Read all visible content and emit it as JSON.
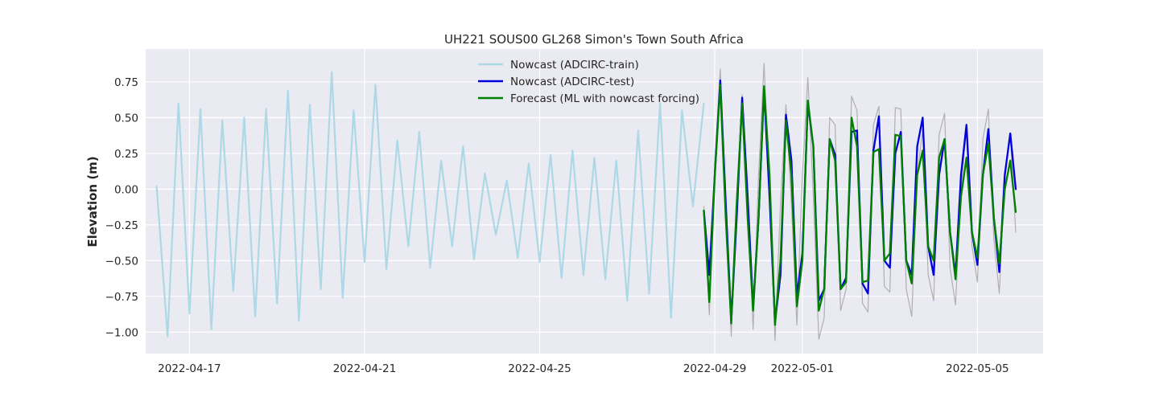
{
  "chart_data": {
    "type": "line",
    "title": "UH221 SOUS00 GL268 Simon's Town South Africa",
    "xlabel": "",
    "ylabel": "Elevation (m)",
    "xlim": [
      "2022-04-16 00:00",
      "2022-05-06 12:00"
    ],
    "ylim": [
      -1.15,
      0.98
    ],
    "grid": true,
    "legend_position": "top-center",
    "x_ticks": [
      "2022-04-17",
      "2022-04-21",
      "2022-04-25",
      "2022-04-29",
      "2022-05-01",
      "2022-05-05"
    ],
    "y_ticks": [
      -1.0,
      -0.75,
      -0.5,
      -0.25,
      0.0,
      0.25,
      0.5,
      0.75
    ],
    "y_tick_labels": [
      "−1.00",
      "−0.75",
      "−0.50",
      "−0.25",
      "0.00",
      "0.25",
      "0.50",
      "0.75"
    ],
    "series": [
      {
        "name": "",
        "color": "#b0b0b0",
        "width": 1.2,
        "x": [
          "2022-04-28 18:00",
          "2022-04-28 21:00",
          "2022-04-29 00:00",
          "2022-04-29 03:00",
          "2022-04-29 06:00",
          "2022-04-29 09:00",
          "2022-04-29 12:00",
          "2022-04-29 15:00",
          "2022-04-29 18:00",
          "2022-04-29 21:00",
          "2022-04-30 00:00",
          "2022-04-30 03:00",
          "2022-04-30 06:00",
          "2022-04-30 09:00",
          "2022-04-30 12:00",
          "2022-04-30 15:00",
          "2022-04-30 18:00",
          "2022-04-30 21:00",
          "2022-05-01 00:00",
          "2022-05-01 03:00",
          "2022-05-01 06:00",
          "2022-05-01 09:00",
          "2022-05-01 12:00",
          "2022-05-01 15:00",
          "2022-05-01 18:00",
          "2022-05-01 21:00",
          "2022-05-02 00:00",
          "2022-05-02 03:00",
          "2022-05-02 06:00",
          "2022-05-02 09:00",
          "2022-05-02 12:00",
          "2022-05-02 15:00",
          "2022-05-02 18:00",
          "2022-05-02 21:00",
          "2022-05-03 00:00",
          "2022-05-03 03:00",
          "2022-05-03 06:00",
          "2022-05-03 09:00",
          "2022-05-03 12:00",
          "2022-05-03 15:00",
          "2022-05-03 18:00",
          "2022-05-03 21:00",
          "2022-05-04 00:00",
          "2022-05-04 03:00",
          "2022-05-04 06:00",
          "2022-05-04 09:00",
          "2022-05-04 12:00",
          "2022-05-04 15:00",
          "2022-05-04 18:00",
          "2022-05-04 21:00",
          "2022-05-05 00:00",
          "2022-05-05 03:00",
          "2022-05-05 06:00",
          "2022-05-05 09:00",
          "2022-05-05 12:00",
          "2022-05-05 15:00",
          "2022-05-05 18:00",
          "2022-05-05 21:00"
        ],
        "values": [
          -0.12,
          -0.88,
          0.2,
          0.84,
          -0.1,
          -1.03,
          -0.1,
          0.66,
          -0.06,
          -0.98,
          0.1,
          0.88,
          0.05,
          -1.06,
          -0.1,
          0.59,
          -0.1,
          -0.95,
          0.1,
          0.78,
          -0.05,
          -1.05,
          -0.9,
          0.5,
          0.45,
          -0.85,
          -0.7,
          0.65,
          0.55,
          -0.8,
          -0.86,
          0.45,
          0.58,
          -0.68,
          -0.72,
          0.57,
          0.56,
          -0.7,
          -0.89,
          0.1,
          0.42,
          -0.6,
          -0.78,
          0.38,
          0.53,
          -0.55,
          -0.81,
          0.0,
          0.42,
          -0.4,
          -0.65,
          0.35,
          0.56,
          -0.35,
          -0.73,
          0.1,
          0.38,
          -0.3
        ]
      },
      {
        "name": "Nowcast (ADCIRC-train)",
        "color": "#add8e6",
        "width": 2.2,
        "x": [
          "2022-04-16 06:00",
          "2022-04-16 12:00",
          "2022-04-16 18:00",
          "2022-04-17 00:00",
          "2022-04-17 06:00",
          "2022-04-17 12:00",
          "2022-04-17 18:00",
          "2022-04-18 00:00",
          "2022-04-18 06:00",
          "2022-04-18 12:00",
          "2022-04-18 18:00",
          "2022-04-19 00:00",
          "2022-04-19 06:00",
          "2022-04-19 12:00",
          "2022-04-19 18:00",
          "2022-04-20 00:00",
          "2022-04-20 06:00",
          "2022-04-20 12:00",
          "2022-04-20 18:00",
          "2022-04-21 00:00",
          "2022-04-21 06:00",
          "2022-04-21 12:00",
          "2022-04-21 18:00",
          "2022-04-22 00:00",
          "2022-04-22 06:00",
          "2022-04-22 12:00",
          "2022-04-22 18:00",
          "2022-04-23 00:00",
          "2022-04-23 06:00",
          "2022-04-23 12:00",
          "2022-04-23 18:00",
          "2022-04-24 00:00",
          "2022-04-24 06:00",
          "2022-04-24 12:00",
          "2022-04-24 18:00",
          "2022-04-25 00:00",
          "2022-04-25 06:00",
          "2022-04-25 12:00",
          "2022-04-25 18:00",
          "2022-04-26 00:00",
          "2022-04-26 06:00",
          "2022-04-26 12:00",
          "2022-04-26 18:00",
          "2022-04-27 00:00",
          "2022-04-27 06:00",
          "2022-04-27 12:00",
          "2022-04-27 18:00",
          "2022-04-28 00:00",
          "2022-04-28 06:00",
          "2022-04-28 12:00",
          "2022-04-28 18:00"
        ],
        "values": [
          0.02,
          -1.03,
          0.6,
          -0.87,
          0.56,
          -0.98,
          0.48,
          -0.71,
          0.5,
          -0.89,
          0.56,
          -0.8,
          0.69,
          -0.92,
          0.59,
          -0.7,
          0.82,
          -0.76,
          0.55,
          -0.51,
          0.73,
          -0.56,
          0.34,
          -0.4,
          0.4,
          -0.55,
          0.2,
          -0.4,
          0.3,
          -0.49,
          0.11,
          -0.32,
          0.06,
          -0.48,
          0.18,
          -0.51,
          0.24,
          -0.62,
          0.27,
          -0.6,
          0.22,
          -0.63,
          0.2,
          -0.78,
          0.41,
          -0.73,
          0.6,
          -0.9,
          0.55,
          -0.12,
          0.6
        ]
      },
      {
        "name": "Nowcast (ADCIRC-test)",
        "color": "#0000dd",
        "width": 2.3,
        "x": [
          "2022-04-28 18:00",
          "2022-04-28 21:00",
          "2022-04-29 00:00",
          "2022-04-29 03:00",
          "2022-04-29 06:00",
          "2022-04-29 09:00",
          "2022-04-29 12:00",
          "2022-04-29 15:00",
          "2022-04-29 18:00",
          "2022-04-29 21:00",
          "2022-04-30 00:00",
          "2022-04-30 03:00",
          "2022-04-30 06:00",
          "2022-04-30 09:00",
          "2022-04-30 12:00",
          "2022-04-30 15:00",
          "2022-04-30 18:00",
          "2022-04-30 21:00",
          "2022-05-01 00:00",
          "2022-05-01 03:00",
          "2022-05-01 06:00",
          "2022-05-01 09:00",
          "2022-05-01 12:00",
          "2022-05-01 15:00",
          "2022-05-01 18:00",
          "2022-05-01 21:00",
          "2022-05-02 00:00",
          "2022-05-02 03:00",
          "2022-05-02 06:00",
          "2022-05-02 09:00",
          "2022-05-02 12:00",
          "2022-05-02 15:00",
          "2022-05-02 18:00",
          "2022-05-02 21:00",
          "2022-05-03 00:00",
          "2022-05-03 03:00",
          "2022-05-03 06:00",
          "2022-05-03 09:00",
          "2022-05-03 12:00",
          "2022-05-03 15:00",
          "2022-05-03 18:00",
          "2022-05-03 21:00",
          "2022-05-04 00:00",
          "2022-05-04 03:00",
          "2022-05-04 06:00",
          "2022-05-04 09:00",
          "2022-05-04 12:00",
          "2022-05-04 15:00",
          "2022-05-04 18:00",
          "2022-05-04 21:00",
          "2022-05-05 00:00",
          "2022-05-05 03:00",
          "2022-05-05 06:00",
          "2022-05-05 09:00",
          "2022-05-05 12:00",
          "2022-05-05 15:00",
          "2022-05-05 18:00",
          "2022-05-05 21:00"
        ],
        "values": [
          -0.15,
          -0.6,
          0.1,
          0.76,
          -0.1,
          -0.92,
          -0.2,
          0.64,
          -0.05,
          -0.83,
          -0.2,
          0.7,
          -0.05,
          -0.93,
          -0.6,
          0.52,
          0.2,
          -0.75,
          -0.45,
          0.6,
          0.3,
          -0.78,
          -0.7,
          0.35,
          0.24,
          -0.7,
          -0.62,
          0.4,
          0.41,
          -0.66,
          -0.73,
          0.27,
          0.51,
          -0.5,
          -0.55,
          0.25,
          0.4,
          -0.5,
          -0.6,
          0.3,
          0.5,
          -0.4,
          -0.6,
          0.1,
          0.35,
          -0.3,
          -0.6,
          0.1,
          0.45,
          -0.3,
          -0.53,
          0.1,
          0.42,
          -0.2,
          -0.58,
          0.1,
          0.39,
          0.0
        ]
      },
      {
        "name": "Forecast (ML with nowcast forcing)",
        "color": "#008000",
        "width": 2.3,
        "x": [
          "2022-04-28 18:00",
          "2022-04-28 21:00",
          "2022-04-29 00:00",
          "2022-04-29 03:00",
          "2022-04-29 06:00",
          "2022-04-29 09:00",
          "2022-04-29 12:00",
          "2022-04-29 15:00",
          "2022-04-29 18:00",
          "2022-04-29 21:00",
          "2022-04-30 00:00",
          "2022-04-30 03:00",
          "2022-04-30 06:00",
          "2022-04-30 09:00",
          "2022-04-30 12:00",
          "2022-04-30 15:00",
          "2022-04-30 18:00",
          "2022-04-30 21:00",
          "2022-05-01 00:00",
          "2022-05-01 03:00",
          "2022-05-01 06:00",
          "2022-05-01 09:00",
          "2022-05-01 12:00",
          "2022-05-01 15:00",
          "2022-05-01 18:00",
          "2022-05-01 21:00",
          "2022-05-02 00:00",
          "2022-05-02 03:00",
          "2022-05-02 06:00",
          "2022-05-02 09:00",
          "2022-05-02 12:00",
          "2022-05-02 15:00",
          "2022-05-02 18:00",
          "2022-05-02 21:00",
          "2022-05-03 00:00",
          "2022-05-03 03:00",
          "2022-05-03 06:00",
          "2022-05-03 09:00",
          "2022-05-03 12:00",
          "2022-05-03 15:00",
          "2022-05-03 18:00",
          "2022-05-03 21:00",
          "2022-05-04 00:00",
          "2022-05-04 03:00",
          "2022-05-04 06:00",
          "2022-05-04 09:00",
          "2022-05-04 12:00",
          "2022-05-04 15:00",
          "2022-05-04 18:00",
          "2022-05-04 21:00",
          "2022-05-05 00:00",
          "2022-05-05 03:00",
          "2022-05-05 06:00",
          "2022-05-05 09:00",
          "2022-05-05 12:00",
          "2022-05-05 15:00",
          "2022-05-05 18:00",
          "2022-05-05 21:00"
        ],
        "values": [
          -0.15,
          -0.79,
          0.1,
          0.73,
          -0.2,
          -0.94,
          -0.1,
          0.6,
          -0.2,
          -0.85,
          -0.2,
          0.72,
          0.1,
          -0.95,
          -0.5,
          0.48,
          0.1,
          -0.82,
          -0.5,
          0.62,
          0.3,
          -0.85,
          -0.7,
          0.35,
          0.2,
          -0.7,
          -0.65,
          0.5,
          0.3,
          -0.65,
          -0.64,
          0.26,
          0.28,
          -0.5,
          -0.45,
          0.38,
          0.37,
          -0.5,
          -0.66,
          0.1,
          0.27,
          -0.4,
          -0.5,
          0.22,
          0.35,
          -0.3,
          -0.63,
          -0.05,
          0.22,
          -0.3,
          -0.48,
          0.1,
          0.32,
          -0.2,
          -0.52,
          0.0,
          0.2,
          -0.16
        ]
      }
    ]
  }
}
